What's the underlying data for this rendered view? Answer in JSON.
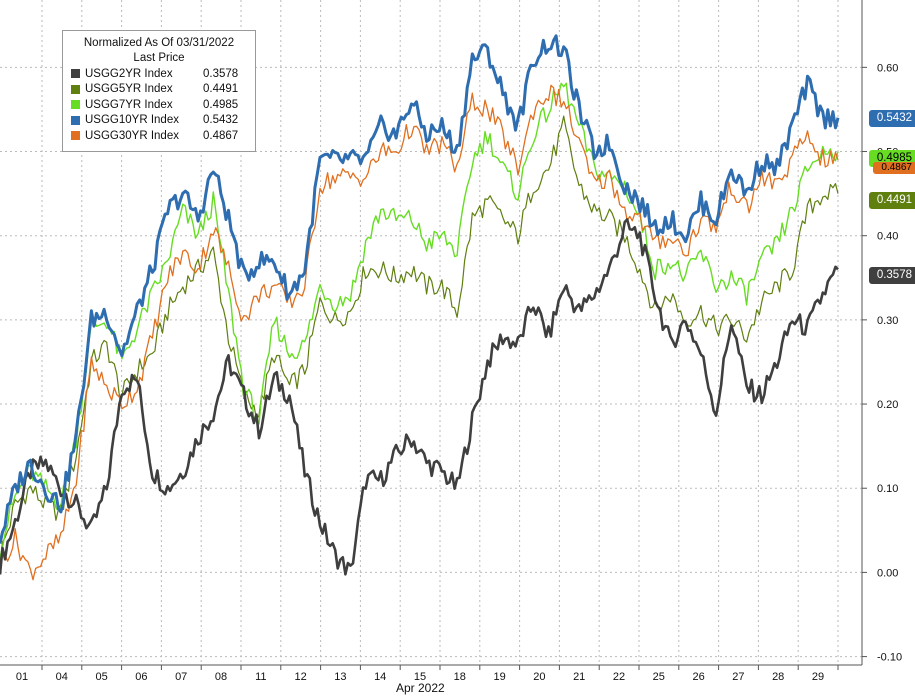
{
  "chart_data": {
    "type": "line",
    "title": "Normalized As Of 03/31/2022",
    "subtitle": "Last Price",
    "xlabel": "Apr 2022",
    "ylabel": "",
    "x_ticks": [
      "01",
      "04",
      "05",
      "06",
      "07",
      "08",
      "11",
      "12",
      "13",
      "14",
      "15",
      "18",
      "19",
      "20",
      "21",
      "22",
      "25",
      "26",
      "27",
      "28",
      "29"
    ],
    "ylim": [
      -0.11,
      0.68
    ],
    "y_ticks": [
      "0.60",
      "0.50",
      "0.40",
      "0.30",
      "0.20",
      "0.10",
      "0.00",
      "-0.10"
    ],
    "grid": true,
    "legend_position": "top-left",
    "series": [
      {
        "name": "USGG2YR Index",
        "last": "0.3578",
        "color": "#3f3f3f",
        "values": [
          0.01,
          0.06,
          0.12,
          0.13,
          0.1,
          0.08,
          0.05,
          0.1,
          0.22,
          0.23,
          0.12,
          0.1,
          0.12,
          0.16,
          0.19,
          0.25,
          0.21,
          0.17,
          0.23,
          0.21,
          0.12,
          0.06,
          0.02,
          0.0,
          0.11,
          0.11,
          0.14,
          0.16,
          0.13,
          0.12,
          0.1,
          0.18,
          0.25,
          0.28,
          0.27,
          0.32,
          0.28,
          0.34,
          0.31,
          0.33,
          0.36,
          0.41,
          0.4,
          0.33,
          0.27,
          0.3,
          0.26,
          0.19,
          0.3,
          0.22,
          0.21,
          0.25,
          0.3,
          0.29,
          0.33,
          0.36
        ],
        "_endlabel": "0.3578"
      },
      {
        "name": "USGG5YR Index",
        "last": "0.4491",
        "color": "#5f7f0f",
        "values": [
          0.02,
          0.08,
          0.1,
          0.08,
          0.07,
          0.14,
          0.25,
          0.27,
          0.21,
          0.24,
          0.26,
          0.31,
          0.34,
          0.36,
          0.38,
          0.28,
          0.21,
          0.19,
          0.26,
          0.22,
          0.24,
          0.32,
          0.3,
          0.31,
          0.36,
          0.36,
          0.35,
          0.36,
          0.34,
          0.34,
          0.31,
          0.42,
          0.44,
          0.42,
          0.4,
          0.46,
          0.48,
          0.53,
          0.46,
          0.43,
          0.42,
          0.4,
          0.36,
          0.31,
          0.33,
          0.3,
          0.31,
          0.29,
          0.3,
          0.28,
          0.32,
          0.34,
          0.36,
          0.43,
          0.45,
          0.45
        ]
      },
      {
        "name": "USGG7YR Index",
        "last": "0.4985",
        "color": "#66dd22",
        "values": [
          0.03,
          0.09,
          0.12,
          0.1,
          0.08,
          0.16,
          0.29,
          0.3,
          0.25,
          0.29,
          0.33,
          0.37,
          0.43,
          0.4,
          0.44,
          0.33,
          0.22,
          0.18,
          0.3,
          0.26,
          0.27,
          0.34,
          0.32,
          0.33,
          0.39,
          0.43,
          0.42,
          0.42,
          0.39,
          0.4,
          0.38,
          0.49,
          0.52,
          0.48,
          0.45,
          0.52,
          0.55,
          0.58,
          0.53,
          0.48,
          0.47,
          0.46,
          0.42,
          0.36,
          0.37,
          0.35,
          0.38,
          0.34,
          0.35,
          0.33,
          0.37,
          0.39,
          0.43,
          0.48,
          0.5,
          0.5
        ]
      },
      {
        "name": "USGG10YR Index",
        "last": "0.5432",
        "color": "#2e6db0",
        "values": [
          0.04,
          0.1,
          0.13,
          0.1,
          0.08,
          0.16,
          0.3,
          0.31,
          0.26,
          0.31,
          0.36,
          0.43,
          0.45,
          0.42,
          0.48,
          0.42,
          0.35,
          0.37,
          0.37,
          0.33,
          0.36,
          0.49,
          0.49,
          0.49,
          0.49,
          0.53,
          0.52,
          0.56,
          0.52,
          0.53,
          0.5,
          0.61,
          0.62,
          0.57,
          0.53,
          0.61,
          0.63,
          0.62,
          0.55,
          0.5,
          0.51,
          0.46,
          0.44,
          0.41,
          0.42,
          0.4,
          0.44,
          0.42,
          0.48,
          0.45,
          0.49,
          0.48,
          0.53,
          0.58,
          0.54,
          0.54
        ]
      },
      {
        "name": "USGG30YR Index",
        "last": "0.4867",
        "color": "#e07020",
        "values": [
          0.01,
          0.04,
          0.0,
          0.02,
          0.04,
          0.11,
          0.25,
          0.22,
          0.2,
          0.22,
          0.28,
          0.35,
          0.38,
          0.36,
          0.41,
          0.36,
          0.3,
          0.33,
          0.34,
          0.32,
          0.34,
          0.46,
          0.47,
          0.47,
          0.47,
          0.5,
          0.5,
          0.53,
          0.5,
          0.51,
          0.48,
          0.56,
          0.55,
          0.52,
          0.48,
          0.55,
          0.57,
          0.56,
          0.51,
          0.46,
          0.47,
          0.43,
          0.42,
          0.39,
          0.4,
          0.38,
          0.42,
          0.41,
          0.46,
          0.43,
          0.47,
          0.46,
          0.49,
          0.52,
          0.49,
          0.49
        ]
      }
    ]
  },
  "legend": {
    "title": "Normalized As Of 03/31/2022",
    "subtitle": "Last Price",
    "rows": [
      {
        "name": "USGG2YR Index",
        "value": "0.3578"
      },
      {
        "name": "USGG5YR Index",
        "value": "0.4491"
      },
      {
        "name": "USGG7YR Index",
        "value": "0.4985"
      },
      {
        "name": "USGG10YR Index",
        "value": "0.5432"
      },
      {
        "name": "USGG30YR Index",
        "value": "0.4867"
      }
    ]
  },
  "end_tags": {
    "t10": "0.5432",
    "t7": "0.4985",
    "t30": "0.4867",
    "t5": "0.4491",
    "t2": "0.3578"
  }
}
